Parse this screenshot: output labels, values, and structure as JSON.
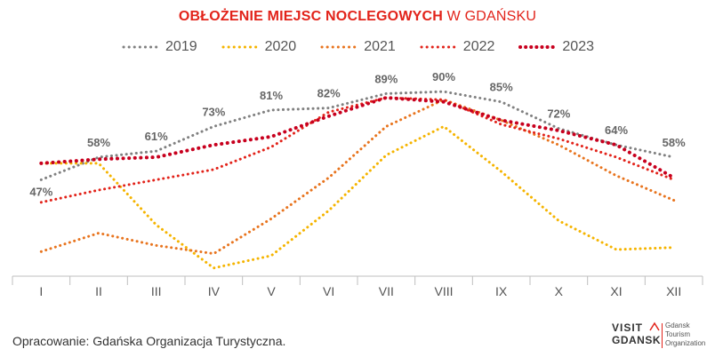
{
  "header": {
    "title_bold": "OBŁOŻENIE MIEJSC NOCLEGOWYCH",
    "title_light": "W GDAŃSKU"
  },
  "footer": {
    "source": "Opracowanie: Gdańska Organizacja Turystyczna."
  },
  "logo": {
    "visit": "VISIT",
    "gdansk": "GDANSK",
    "org": "Gdansk\nTourism\nOrganization"
  },
  "colors": {
    "2019": "#808080",
    "2020": "#f5b400",
    "2021": "#e8741e",
    "2022": "#e2231a",
    "2023": "#c8001e",
    "axis": "#bfbfbf",
    "title": "#e2231a"
  },
  "chart_data": {
    "type": "line",
    "title": "OBŁOŻENIE MIEJSC NOCLEGOWYCH W GDAŃSKU",
    "xlabel": "",
    "ylabel": "",
    "categories": [
      "I",
      "II",
      "III",
      "IV",
      "V",
      "VI",
      "VII",
      "VIII",
      "IX",
      "X",
      "XI",
      "XII"
    ],
    "ylim": [
      0,
      100
    ],
    "grid": false,
    "legend": "top",
    "labeled_series": "2019",
    "data_labels": [
      "47%",
      "58%",
      "61%",
      "73%",
      "81%",
      "82%",
      "89%",
      "90%",
      "85%",
      "72%",
      "64%",
      "58%"
    ],
    "series": [
      {
        "name": "2019",
        "values": [
          47,
          58,
          61,
          73,
          81,
          82,
          89,
          90,
          85,
          72,
          64,
          58
        ]
      },
      {
        "name": "2020",
        "values": [
          55,
          55,
          25,
          4,
          10,
          32,
          59,
          73,
          51,
          27,
          13,
          14
        ]
      },
      {
        "name": "2021",
        "values": [
          12,
          21,
          15,
          11,
          28,
          48,
          73,
          86,
          76,
          64,
          49,
          37
        ]
      },
      {
        "name": "2022",
        "values": [
          36,
          42,
          47,
          52,
          63,
          80,
          87,
          86,
          74,
          67,
          58,
          47
        ]
      },
      {
        "name": "2023",
        "values": [
          55,
          57,
          58,
          64,
          68,
          78,
          87,
          85,
          76,
          71,
          64,
          48
        ]
      }
    ]
  }
}
